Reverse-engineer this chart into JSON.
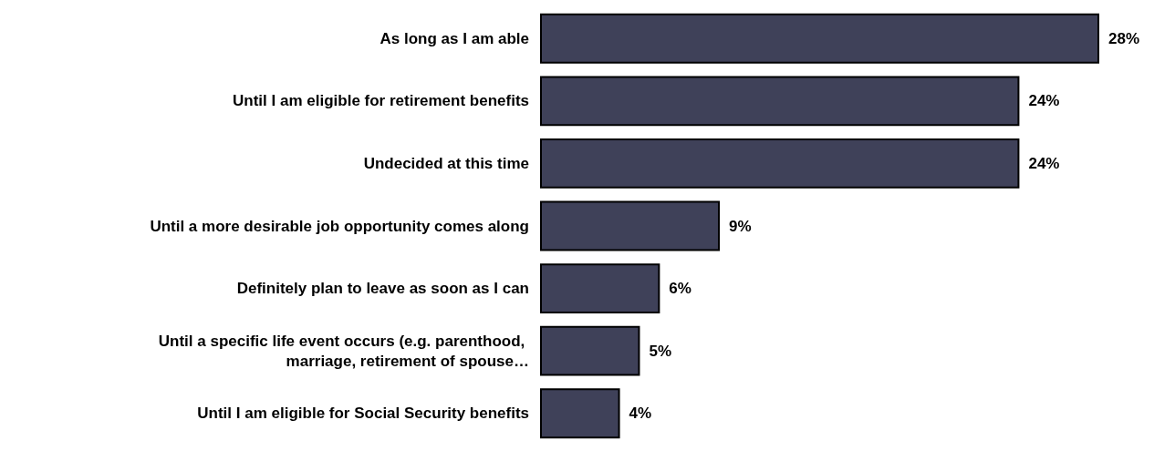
{
  "chart_data": {
    "type": "bar",
    "orientation": "horizontal",
    "categories": [
      "As long as I am able",
      "Until I am eligible for retirement benefits",
      "Undecided at this time",
      "Until a more desirable job opportunity comes along",
      "Definitely plan to leave as soon as I can",
      "Until a specific life event occurs (e.g. parenthood, marriage, retirement of spouse…",
      "Until I am eligible for Social Security benefits"
    ],
    "values": [
      28,
      24,
      24,
      9,
      6,
      5,
      4
    ],
    "value_labels": [
      "28%",
      "24%",
      "24%",
      "9%",
      "6%",
      "5%",
      "4%"
    ],
    "color": "#3f4159"
  }
}
